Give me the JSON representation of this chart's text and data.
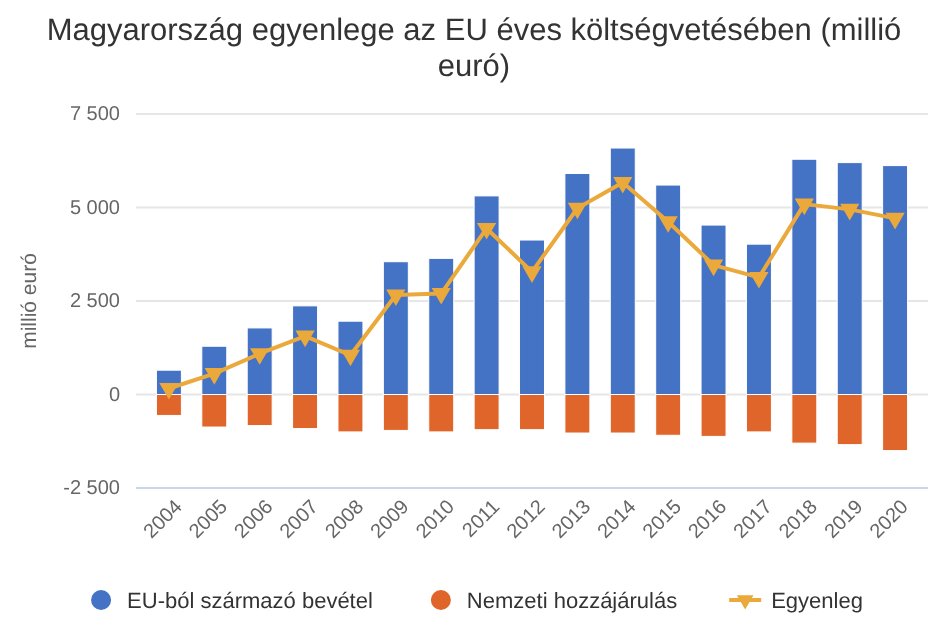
{
  "chart_data": {
    "type": "bar",
    "title": "Magyarország egyenlege az EU éves költségvetésében (millió euró)",
    "ylabel": "millió euró",
    "categories": [
      "2004",
      "2005",
      "2006",
      "2007",
      "2008",
      "2009",
      "2010",
      "2011",
      "2012",
      "2013",
      "2014",
      "2015",
      "2016",
      "2017",
      "2018",
      "2019",
      "2020"
    ],
    "stacked": true,
    "series": [
      {
        "name": "EU-ból származó bevétel",
        "color": "#4472c4",
        "values": [
          650,
          1290,
          1780,
          2370,
          1960,
          3550,
          3640,
          5310,
          4130,
          5910,
          6590,
          5600,
          4530,
          4020,
          6290,
          6200,
          6120
        ]
      },
      {
        "name": "Nemzeti hozzájárulás",
        "color": "#e0652b",
        "values": [
          -560,
          -870,
          -830,
          -910,
          -1000,
          -960,
          -1000,
          -940,
          -940,
          -1030,
          -1030,
          -1090,
          -1120,
          -1000,
          -1300,
          -1340,
          -1500
        ]
      },
      {
        "name": "Egyenleg",
        "type": "line",
        "color": "#eaa93a",
        "marker": "triangle",
        "values": [
          160,
          560,
          1090,
          1560,
          1050,
          2660,
          2700,
          4440,
          3280,
          4980,
          5670,
          4620,
          3460,
          3130,
          5090,
          4950,
          4710
        ]
      }
    ],
    "ylim": [
      -2500,
      7500
    ],
    "yticks": [
      {
        "value": -2500,
        "label": "-2 500"
      },
      {
        "value": 0,
        "label": "0"
      },
      {
        "value": 2500,
        "label": "2 500"
      },
      {
        "value": 5000,
        "label": "5 000"
      },
      {
        "value": 7500,
        "label": "7 500"
      }
    ],
    "grid": "y",
    "legend": "bottom"
  }
}
